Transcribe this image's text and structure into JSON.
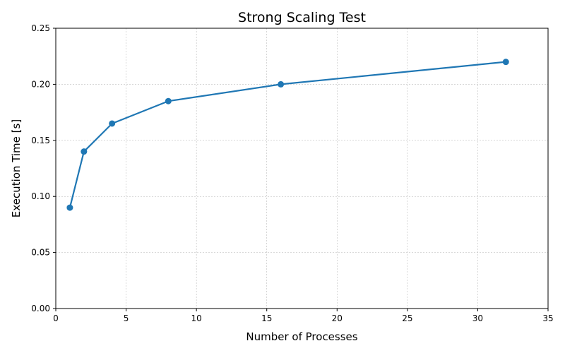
{
  "chart_data": {
    "type": "line",
    "title": "Strong Scaling Test",
    "xlabel": "Number of Processes",
    "ylabel": "Execution Time [s]",
    "xlim": [
      0,
      35
    ],
    "ylim": [
      0,
      0.25
    ],
    "x_ticks": [
      0,
      5,
      10,
      15,
      20,
      25,
      30,
      35
    ],
    "y_ticks": [
      0.0,
      0.05,
      0.1,
      0.15,
      0.2,
      0.25
    ],
    "x_tick_labels": [
      "0",
      "5",
      "10",
      "15",
      "20",
      "25",
      "30",
      "35"
    ],
    "y_tick_labels": [
      "0.00",
      "0.05",
      "0.10",
      "0.15",
      "0.20",
      "0.25"
    ],
    "grid": true,
    "legend": false,
    "series": [
      {
        "color": "#1f77b4",
        "marker": "circle",
        "x": [
          1,
          2,
          4,
          8,
          16,
          32
        ],
        "y": [
          0.09,
          0.14,
          0.165,
          0.185,
          0.2,
          0.22
        ]
      }
    ]
  }
}
